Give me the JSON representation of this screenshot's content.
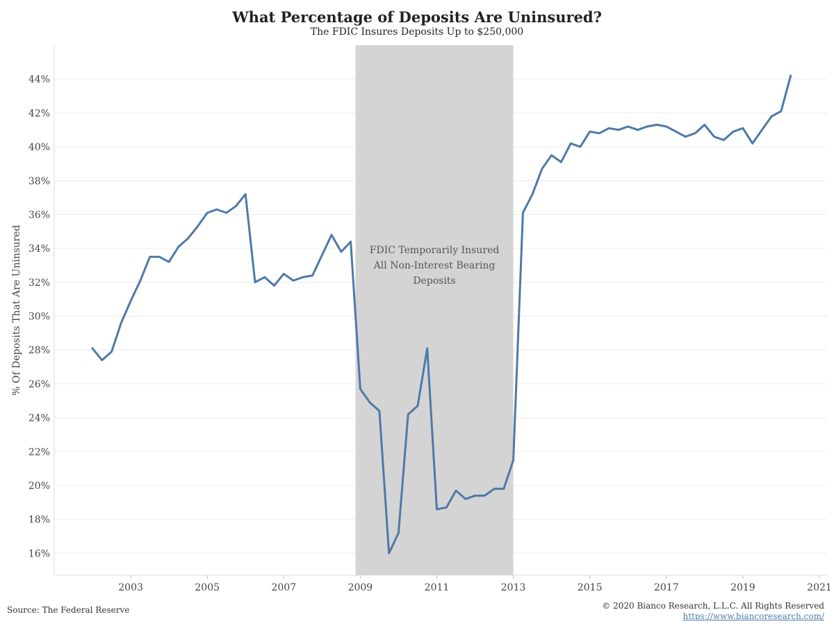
{
  "title": "What Percentage of Deposits Are Uninsured?",
  "subtitle": "The FDIC Insures Deposits Up to $250,000",
  "footer": {
    "source": "Source: The Federal Reserve",
    "copyright": "© 2020 Bianco Research, L.L.C. All Rights Reserved",
    "url": "https://www.biancoresearch.com/"
  },
  "colors": {
    "line": "#4e79a7",
    "shade": "#d4d4d4",
    "grid": "#ececec"
  },
  "chart_data": {
    "type": "line",
    "title": "What Percentage of Deposits Are Uninsured?",
    "subtitle": "The FDIC Insures Deposits Up to $250,000",
    "xlabel": "",
    "ylabel": "% Of Deposits That Are Uninsured",
    "xlim": [
      2001.0,
      2021.2
    ],
    "ylim": [
      14.7,
      46.0
    ],
    "grid": true,
    "x_ticks": [
      2003,
      2005,
      2007,
      2009,
      2011,
      2013,
      2015,
      2017,
      2019,
      2021
    ],
    "y_ticks": [
      16,
      18,
      20,
      22,
      24,
      26,
      28,
      30,
      32,
      34,
      36,
      38,
      40,
      42,
      44
    ],
    "y_tick_suffix": "%",
    "shaded_region": {
      "x": [
        2008.875,
        2013.0
      ],
      "annotation": [
        "FDIC Temporarily Insured",
        "All Non-Interest Bearing",
        "Deposits"
      ]
    },
    "series": [
      {
        "x": [
          2002.0,
          2002.25,
          2002.5,
          2002.75,
          2003.0,
          2003.25,
          2003.5,
          2003.75,
          2004.0,
          2004.25,
          2004.5,
          2004.75,
          2005.0,
          2005.25,
          2005.5,
          2005.75,
          2006.0,
          2006.25,
          2006.5,
          2006.75,
          2007.0,
          2007.25,
          2007.5,
          2007.75,
          2008.0,
          2008.25,
          2008.5,
          2008.75,
          2009.0,
          2009.25,
          2009.5,
          2009.75,
          2010.0,
          2010.25,
          2010.5,
          2010.75,
          2011.0,
          2011.25,
          2011.5,
          2011.75,
          2012.0,
          2012.25,
          2012.5,
          2012.75,
          2013.0,
          2013.25,
          2013.5,
          2013.75,
          2014.0,
          2014.25,
          2014.5,
          2014.75,
          2015.0,
          2015.25,
          2015.5,
          2015.75,
          2016.0,
          2016.25,
          2016.5,
          2016.75,
          2017.0,
          2017.25,
          2017.5,
          2017.75,
          2018.0,
          2018.25,
          2018.5,
          2018.75,
          2019.0,
          2019.25,
          2019.5,
          2019.75,
          2020.0,
          2020.25
        ],
        "y": [
          28.1,
          27.4,
          27.9,
          29.6,
          30.9,
          32.1,
          33.5,
          33.5,
          33.2,
          34.1,
          34.6,
          35.3,
          36.1,
          36.3,
          36.1,
          36.5,
          37.2,
          32.0,
          32.3,
          31.8,
          32.5,
          32.1,
          32.3,
          32.4,
          33.6,
          34.8,
          33.8,
          34.4,
          25.7,
          24.9,
          24.4,
          16.0,
          17.2,
          24.2,
          24.7,
          28.1,
          18.6,
          18.7,
          19.7,
          19.2,
          19.4,
          19.4,
          19.8,
          19.8,
          21.5,
          36.1,
          37.2,
          38.7,
          39.5,
          39.1,
          40.2,
          40.0,
          40.9,
          40.8,
          41.1,
          41.0,
          41.2,
          41.0,
          41.2,
          41.3,
          41.2,
          40.9,
          40.6,
          40.8,
          41.3,
          40.6,
          40.4,
          40.9,
          41.1,
          40.2,
          41.0,
          41.8,
          42.1,
          44.2
        ]
      }
    ]
  }
}
